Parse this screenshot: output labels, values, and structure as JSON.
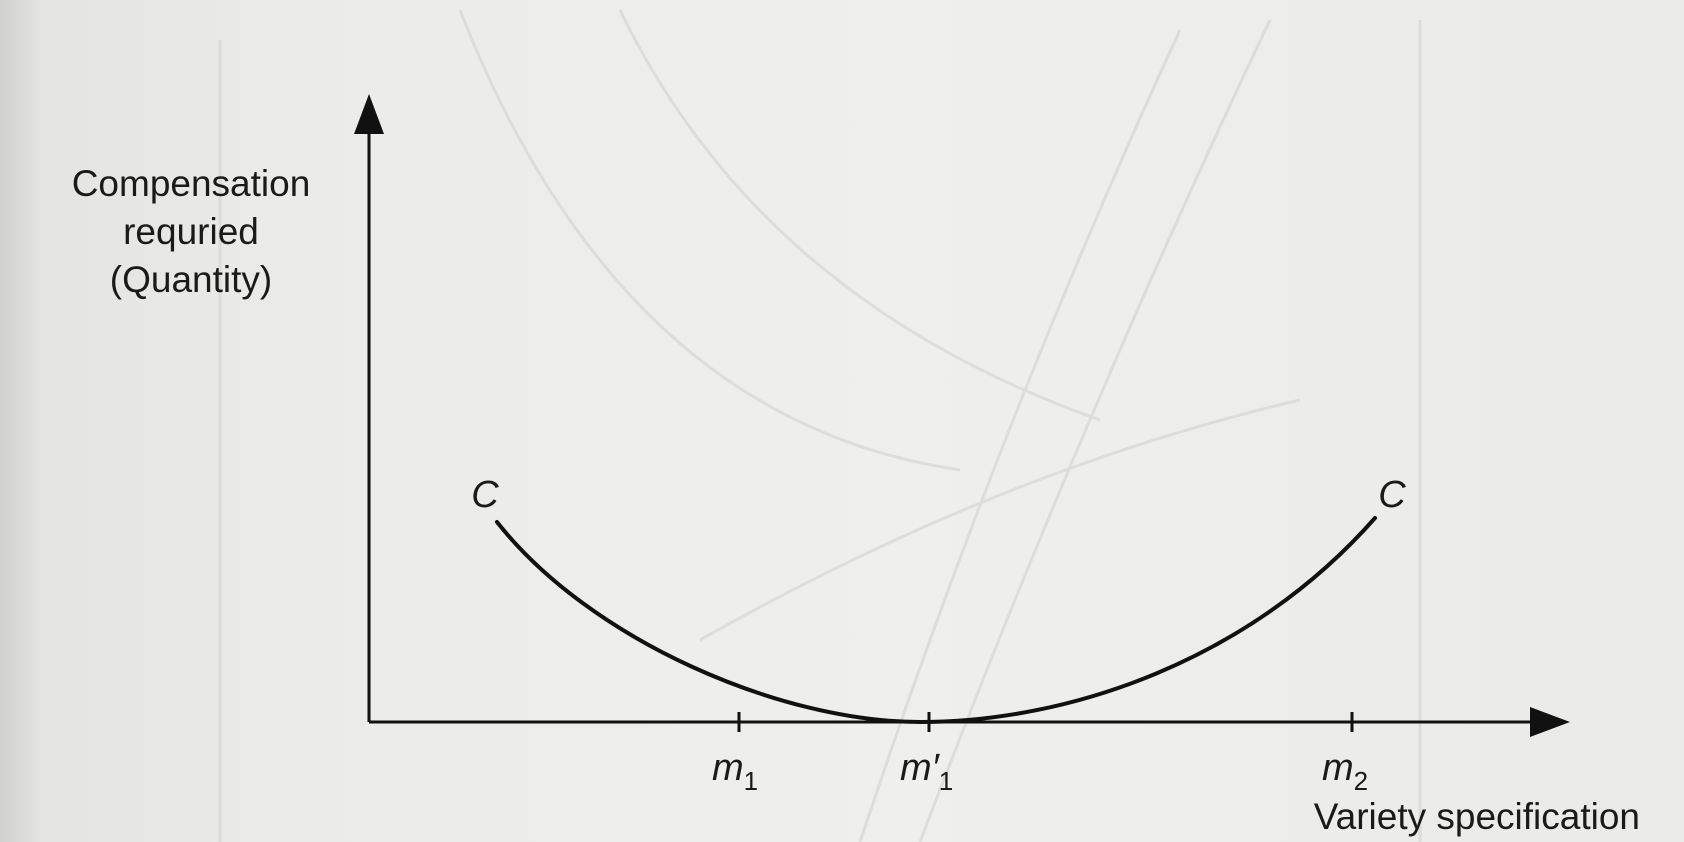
{
  "diagram": {
    "y_axis_label": [
      "Compensation",
      "requried",
      "(Quantity)"
    ],
    "x_axis_label": "Variety specification",
    "curve_label_left": "C",
    "curve_label_right": "C",
    "ticks": [
      {
        "base": "m",
        "prime": "",
        "sub": "1"
      },
      {
        "base": "m",
        "prime": "′",
        "sub": "1"
      },
      {
        "base": "m",
        "prime": "",
        "sub": "2"
      }
    ],
    "colors": {
      "ink": "#111111",
      "paper": "#ececea"
    }
  }
}
